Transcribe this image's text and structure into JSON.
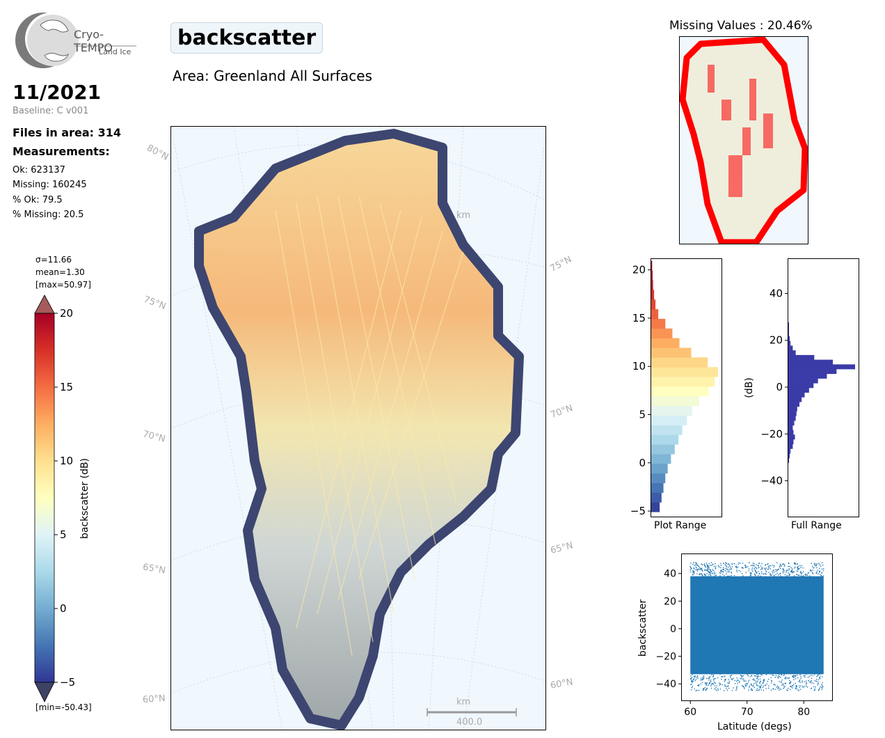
{
  "logo": {
    "title": "Cryo-TEMPO",
    "subtitle": "Land Ice"
  },
  "parameter": "backscatter",
  "area": "Area: Greenland All Surfaces",
  "date": "11/2021",
  "baseline": "Baseline: C v001",
  "files_in_area": "Files in area: 314",
  "measurements_title": "Measurements:",
  "stats": {
    "ok": "Ok: 623137",
    "missing": "Missing: 160245",
    "pct_ok": "% Ok: 79.5",
    "pct_missing": "% Missing: 20.5"
  },
  "colorbar": {
    "sigma": "σ=11.66",
    "mean": "mean=1.30",
    "max": "[max=50.97]",
    "min": "[min=-50.43]",
    "label": "backscatter (dB)",
    "ticks": [
      "20",
      "15",
      "10",
      "5",
      "0",
      "−5"
    ],
    "range": [
      -5,
      20
    ],
    "colors": [
      "#313695",
      "#4575b4",
      "#74add1",
      "#abd9e9",
      "#e0f3f8",
      "#ffffbf",
      "#fee090",
      "#fdae61",
      "#f46d43",
      "#d73027",
      "#a50026"
    ],
    "over_color": "#a65a5a",
    "under_color": "#3d4263"
  },
  "main_map": {
    "lat_labels_left": [
      "80°N",
      "75°N",
      "70°N",
      "65°N",
      "60°N"
    ],
    "lat_labels_right": [
      "75°N",
      "70°N",
      "65°N",
      "60°N"
    ],
    "scalebar_unit": "km",
    "scalebar_value": "400.0"
  },
  "missing_map": {
    "title": "Missing Values : 20.46%",
    "missing_color": "#ff0000",
    "land_color": "#efeedd"
  },
  "chart_data": [
    {
      "type": "bar",
      "orientation": "horizontal",
      "title": "Plot Range",
      "xlabel": "Plot Range",
      "ylabel": "",
      "ylim": [
        -5.5,
        21.2
      ],
      "yticks": [
        "20",
        "15",
        "10",
        "5",
        "0",
        "−5"
      ],
      "bin_centers": [
        -4.5,
        -3.5,
        -2.5,
        -1.5,
        -0.5,
        0.5,
        1.5,
        2.5,
        3.5,
        4.5,
        5.5,
        6.5,
        7.5,
        8.5,
        9.5,
        10.5,
        11.5,
        12.5,
        13.5,
        14.5,
        15.5,
        16.5,
        17.5,
        18.5,
        19.5,
        20.5
      ],
      "counts": [
        18,
        22,
        26,
        30,
        35,
        42,
        50,
        58,
        66,
        76,
        87,
        102,
        122,
        135,
        142,
        120,
        85,
        60,
        45,
        30,
        15,
        9,
        6,
        4,
        3,
        2
      ]
    },
    {
      "type": "bar",
      "orientation": "horizontal",
      "title": "Full Range",
      "xlabel": "Full Range",
      "ylabel": "(dB)",
      "ylim": [
        -55,
        55
      ],
      "yticks": [
        "40",
        "20",
        "0",
        "−20",
        "−40"
      ],
      "color": "#3b3ba8",
      "bin_centers": [
        -31,
        -29,
        -27,
        -25,
        -23,
        -21,
        -19,
        -17,
        -15,
        -13,
        -11,
        -9,
        -7,
        -5,
        -3,
        -1,
        1,
        3,
        5,
        7,
        9,
        11,
        13,
        15,
        17,
        19,
        21,
        23,
        25,
        27
      ],
      "counts": [
        1,
        2,
        3,
        6,
        7,
        9,
        7,
        6,
        8,
        10,
        11,
        12,
        15,
        18,
        22,
        28,
        34,
        40,
        52,
        65,
        90,
        60,
        35,
        10,
        6,
        3,
        2,
        1,
        1,
        1
      ]
    },
    {
      "type": "scatter",
      "xlabel": "Latitude (degs)",
      "ylabel": "backscatter",
      "xlim": [
        58.5,
        85
      ],
      "ylim": [
        -52,
        54
      ],
      "xticks": [
        "60",
        "70",
        "80"
      ],
      "yticks": [
        "40",
        "20",
        "0",
        "−20",
        "−40"
      ],
      "color": "#1f77b4",
      "band": {
        "x": [
          60,
          83.5
        ],
        "y": [
          -33,
          38
        ]
      }
    }
  ]
}
